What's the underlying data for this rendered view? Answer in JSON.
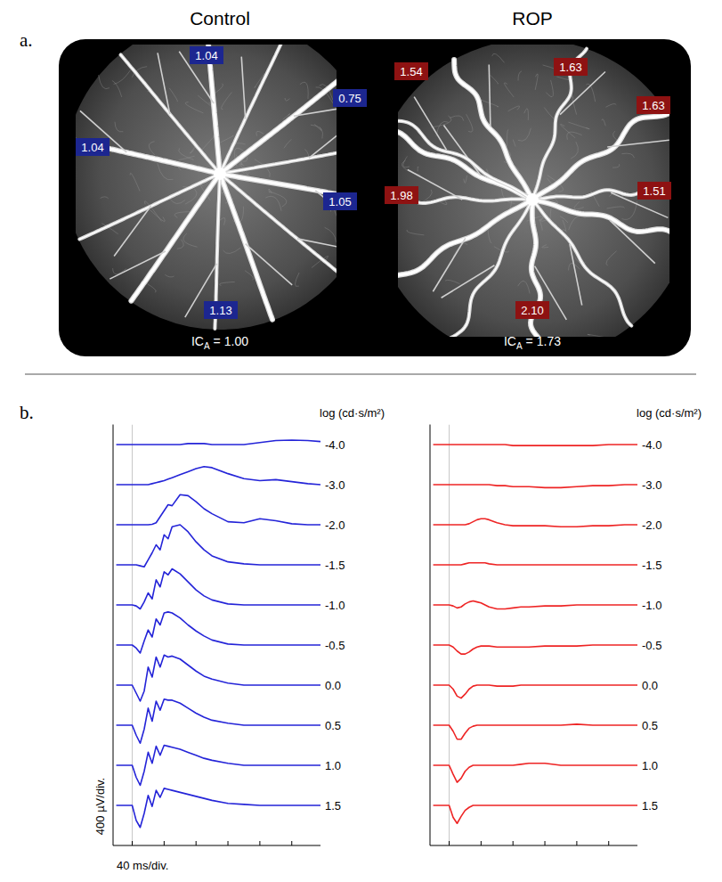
{
  "panel_a": {
    "label": "a.",
    "images": [
      {
        "title": "Control",
        "vessel_labels": [
          "1.04",
          "0.75",
          "1.04",
          "1.05",
          "1.13"
        ],
        "index_name": "IC",
        "index_subscript": "A",
        "index_equals": "=",
        "index_label": "1.00",
        "color": "#1c2690"
      },
      {
        "title": "ROP",
        "vessel_labels": [
          "1.54",
          "1.63",
          "1.63",
          "1.98",
          "1.51",
          "2.10"
        ],
        "index_name": "IC",
        "index_subscript": "A",
        "index_equals": "=",
        "index_label": "1.73",
        "color": "#8e1212"
      }
    ]
  },
  "panel_b": {
    "label": "b."
  },
  "chart_data": [
    {
      "type": "line",
      "x": [
        -20,
        -10,
        0,
        5,
        10,
        15,
        20,
        25,
        30,
        35,
        40,
        45,
        50,
        60,
        70,
        80,
        90,
        100,
        120,
        140,
        160,
        180,
        200,
        220,
        236
      ],
      "xlim": [
        -24,
        236
      ],
      "xticks": [
        0,
        40,
        80,
        120,
        160,
        200
      ],
      "ylim": [
        -400,
        3800
      ],
      "y_div": 400,
      "flash_time": 0,
      "tick_labels": false,
      "x_label": "40 ms/div.",
      "y_label": "400 µV/div.",
      "annotation": "log (cd·s/m²)",
      "color": "#2424d8",
      "series": [
        {
          "name": "-4.0",
          "values": [
            0,
            0,
            0,
            0,
            0,
            0,
            0,
            0,
            0,
            0,
            0,
            0,
            0,
            0,
            10,
            10,
            10,
            0,
            0,
            0,
            20,
            40,
            45,
            40,
            30
          ]
        },
        {
          "name": "-3.0",
          "values": [
            0,
            0,
            0,
            0,
            0,
            0,
            0,
            10,
            20,
            30,
            40,
            55,
            70,
            100,
            130,
            160,
            180,
            170,
            110,
            60,
            40,
            50,
            30,
            10,
            0
          ]
        },
        {
          "name": "-2.0",
          "values": [
            0,
            0,
            0,
            0,
            0,
            0,
            0,
            5,
            20,
            80,
            140,
            200,
            190,
            300,
            290,
            230,
            160,
            110,
            30,
            20,
            60,
            40,
            10,
            0,
            0
          ]
        },
        {
          "name": "-1.5",
          "values": [
            0,
            0,
            0,
            0,
            -10,
            -20,
            50,
            120,
            200,
            150,
            300,
            260,
            380,
            400,
            330,
            230,
            150,
            90,
            30,
            10,
            0,
            0,
            0,
            0,
            0
          ]
        },
        {
          "name": "-1.0",
          "values": [
            0,
            0,
            0,
            -10,
            -40,
            30,
            120,
            60,
            250,
            180,
            330,
            300,
            360,
            310,
            230,
            150,
            90,
            50,
            10,
            0,
            0,
            0,
            0,
            0,
            0
          ]
        },
        {
          "name": "-0.5",
          "values": [
            0,
            0,
            0,
            -30,
            -80,
            40,
            150,
            80,
            260,
            200,
            320,
            330,
            320,
            270,
            200,
            140,
            90,
            50,
            10,
            0,
            0,
            0,
            0,
            0,
            0
          ]
        },
        {
          "name": "0.0",
          "values": [
            0,
            0,
            0,
            -80,
            -160,
            -60,
            180,
            80,
            280,
            180,
            300,
            280,
            290,
            260,
            200,
            140,
            90,
            60,
            20,
            0,
            0,
            0,
            0,
            0,
            0
          ]
        },
        {
          "name": "0.5",
          "values": [
            0,
            0,
            0,
            -100,
            -180,
            -40,
            170,
            40,
            240,
            150,
            260,
            250,
            250,
            220,
            170,
            120,
            80,
            50,
            20,
            0,
            0,
            0,
            0,
            0,
            0
          ]
        },
        {
          "name": "1.0",
          "values": [
            0,
            0,
            0,
            -120,
            -200,
            -60,
            130,
            20,
            190,
            100,
            200,
            190,
            180,
            160,
            130,
            100,
            70,
            50,
            20,
            0,
            0,
            0,
            0,
            0,
            0
          ]
        },
        {
          "name": "1.5",
          "values": [
            0,
            0,
            0,
            -150,
            -220,
            -80,
            100,
            -10,
            150,
            80,
            170,
            160,
            150,
            130,
            110,
            90,
            70,
            50,
            20,
            10,
            0,
            0,
            0,
            0,
            0
          ]
        }
      ]
    },
    {
      "type": "line",
      "x": [
        -20,
        -10,
        0,
        5,
        10,
        15,
        20,
        25,
        30,
        35,
        40,
        45,
        50,
        60,
        70,
        80,
        90,
        100,
        120,
        140,
        160,
        180,
        200,
        220,
        236
      ],
      "xlim": [
        -24,
        236
      ],
      "xticks": [
        0,
        40,
        80,
        120,
        160,
        200
      ],
      "ylim": [
        -400,
        3800
      ],
      "y_div": 400,
      "flash_time": 0,
      "tick_labels": false,
      "annotation": "log (cd·s/m²)",
      "color": "#ee2424",
      "series": [
        {
          "name": "-4.0",
          "values": [
            0,
            0,
            0,
            0,
            0,
            0,
            0,
            0,
            0,
            0,
            0,
            0,
            0,
            0,
            0,
            -10,
            -10,
            -10,
            -10,
            -10,
            -10,
            -10,
            0,
            0,
            0
          ]
        },
        {
          "name": "-3.0",
          "values": [
            0,
            0,
            0,
            0,
            0,
            0,
            0,
            0,
            0,
            0,
            0,
            0,
            0,
            -10,
            -10,
            -20,
            -20,
            -20,
            -30,
            -30,
            -20,
            -10,
            -10,
            0,
            0
          ]
        },
        {
          "name": "-2.0",
          "values": [
            0,
            0,
            0,
            0,
            0,
            0,
            0,
            10,
            30,
            50,
            60,
            60,
            50,
            20,
            0,
            -10,
            -10,
            -10,
            -10,
            -20,
            -20,
            -10,
            -10,
            0,
            0
          ]
        },
        {
          "name": "-1.5",
          "values": [
            0,
            0,
            0,
            0,
            0,
            0,
            10,
            20,
            20,
            20,
            20,
            20,
            10,
            0,
            0,
            0,
            0,
            0,
            0,
            0,
            0,
            0,
            0,
            0,
            0
          ]
        },
        {
          "name": "-1.0",
          "values": [
            0,
            0,
            0,
            -10,
            -30,
            -20,
            10,
            30,
            40,
            30,
            20,
            0,
            -20,
            -40,
            -40,
            -30,
            -20,
            -20,
            -10,
            -10,
            0,
            0,
            0,
            0,
            0
          ]
        },
        {
          "name": "-0.5",
          "values": [
            0,
            0,
            0,
            -20,
            -60,
            -90,
            -90,
            -70,
            -40,
            -20,
            -10,
            -10,
            -10,
            -20,
            -20,
            -20,
            -20,
            -20,
            -10,
            -10,
            -10,
            0,
            0,
            0,
            0
          ]
        },
        {
          "name": "0.0",
          "values": [
            0,
            0,
            0,
            -40,
            -110,
            -130,
            -90,
            -40,
            -10,
            0,
            0,
            0,
            0,
            -10,
            -10,
            -10,
            0,
            0,
            0,
            0,
            0,
            0,
            0,
            0,
            0
          ]
        },
        {
          "name": "0.5",
          "values": [
            0,
            0,
            0,
            -60,
            -140,
            -140,
            -80,
            -30,
            -10,
            0,
            0,
            0,
            0,
            0,
            0,
            0,
            0,
            0,
            0,
            0,
            10,
            0,
            0,
            0,
            0
          ]
        },
        {
          "name": "1.0",
          "values": [
            0,
            0,
            0,
            -90,
            -170,
            -130,
            -60,
            -20,
            0,
            0,
            0,
            0,
            0,
            0,
            0,
            0,
            10,
            20,
            20,
            0,
            0,
            0,
            0,
            0,
            0
          ]
        },
        {
          "name": "1.5",
          "values": [
            0,
            0,
            0,
            -120,
            -180,
            -110,
            -50,
            -20,
            0,
            0,
            0,
            0,
            0,
            0,
            0,
            0,
            0,
            0,
            0,
            0,
            0,
            0,
            0,
            0,
            0
          ]
        }
      ]
    }
  ]
}
